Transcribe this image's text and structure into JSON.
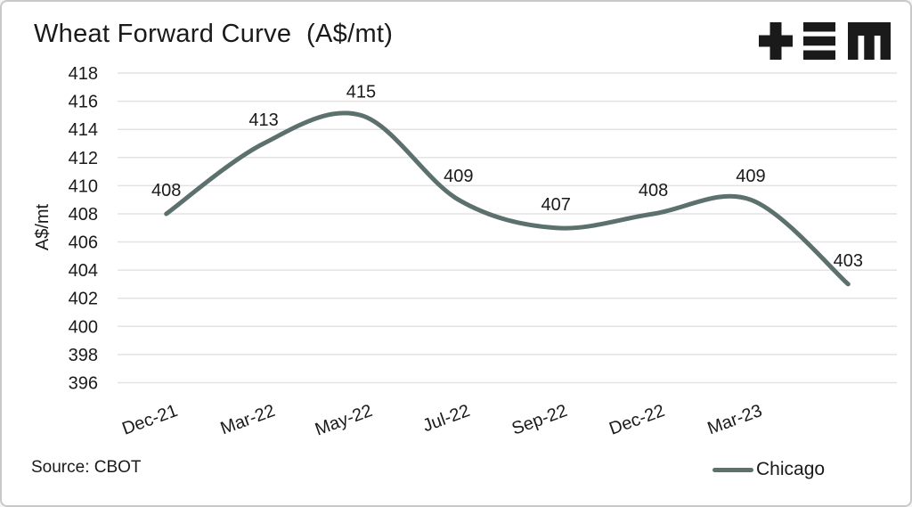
{
  "header": {
    "title": "Wheat Forward Curve  (A$/mt)"
  },
  "logo": {
    "name": "TEM",
    "glyphs": [
      "plus",
      "triple-bar",
      "m"
    ],
    "color": "#1a1a1a"
  },
  "footer": {
    "source": "Source: CBOT"
  },
  "legend": {
    "position": "bottom-right",
    "items": [
      {
        "label": "Chicago",
        "color": "#5c706d"
      }
    ]
  },
  "colors": {
    "line": "#5c706d",
    "gridline": "#e3e3e3",
    "text": "#1a1a1a",
    "border": "#c9c9c9",
    "background": "#ffffff"
  },
  "chart_data": {
    "type": "line",
    "title": "Wheat Forward Curve (A$/mt)",
    "xlabel": "",
    "ylabel": "A$/mt",
    "ylim": [
      396,
      418
    ],
    "yticks": [
      418,
      416,
      414,
      412,
      410,
      408,
      406,
      404,
      402,
      400,
      398,
      396
    ],
    "x_labels": [
      "Dec-21",
      "Mar-22",
      "May-22",
      "Jul-22",
      "Sep-22",
      "Dec-22",
      "Mar-23",
      ""
    ],
    "series": [
      {
        "name": "Chicago",
        "color": "#5c706d",
        "values": [
          408,
          413,
          415,
          409,
          407,
          408,
          409,
          403
        ],
        "smooth": true,
        "data_labels": [
          408,
          413,
          415,
          409,
          407,
          408,
          409,
          403
        ]
      }
    ],
    "grid": "horizontal-only",
    "legend_position": "bottom-right"
  }
}
